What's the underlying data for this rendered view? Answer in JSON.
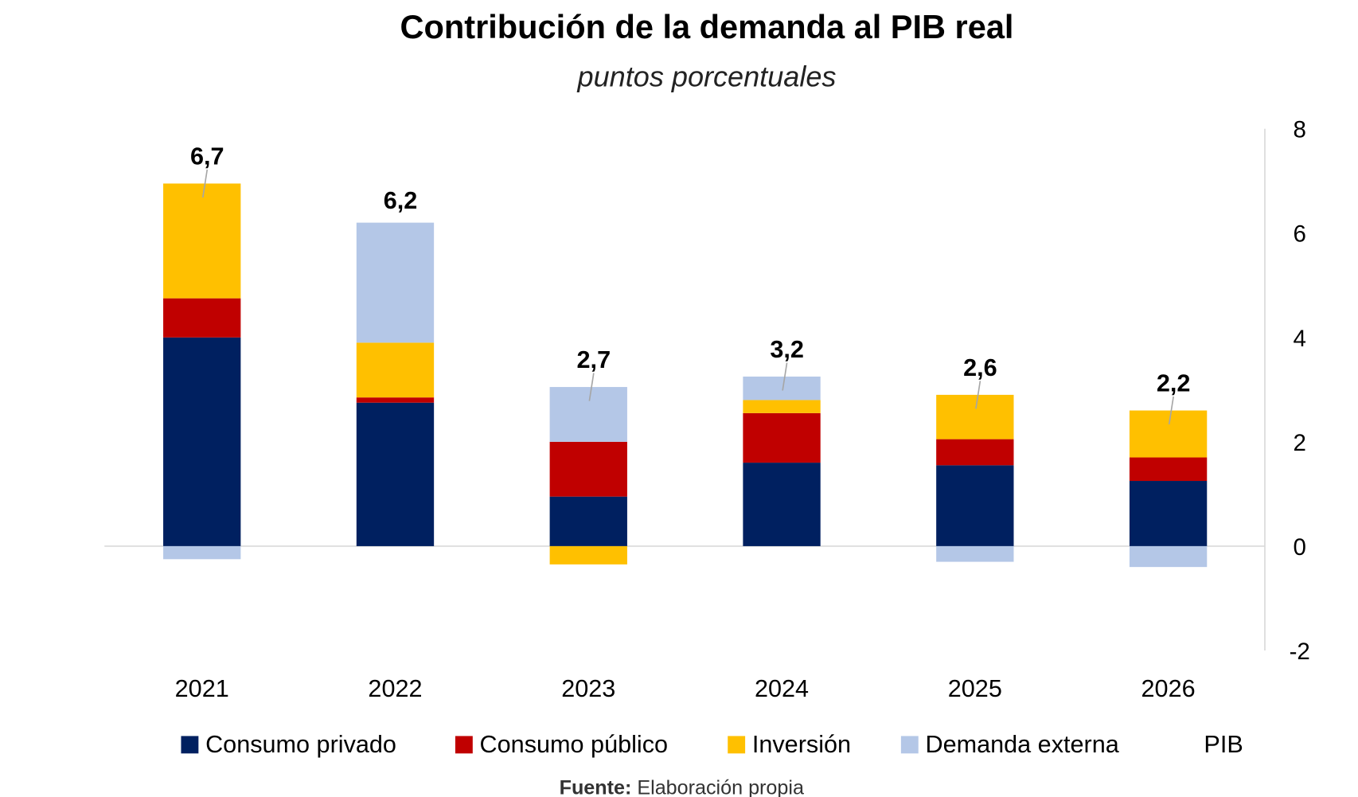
{
  "chart_data": {
    "type": "bar",
    "stacked": true,
    "title": "Contribución de la demanda al PIB real",
    "subtitle": "puntos porcentuales",
    "categories": [
      "2021",
      "2022",
      "2023",
      "2024",
      "2025",
      "2026"
    ],
    "series": [
      {
        "name": "Consumo privado",
        "color": "#002060",
        "values": [
          4.0,
          2.75,
          0.95,
          1.6,
          1.55,
          1.25
        ]
      },
      {
        "name": "Consumo público",
        "color": "#C00000",
        "values": [
          0.75,
          0.1,
          1.05,
          0.95,
          0.5,
          0.45
        ]
      },
      {
        "name": "Inversión",
        "color": "#FFC000",
        "values": [
          2.2,
          1.05,
          -0.35,
          0.25,
          0.85,
          0.9
        ]
      },
      {
        "name": "Demanda externa",
        "color": "#B4C7E7",
        "values": [
          -0.25,
          2.3,
          1.05,
          0.45,
          -0.3,
          -0.4
        ]
      }
    ],
    "total": {
      "name": "PIB",
      "values": [
        6.7,
        6.2,
        2.7,
        3.2,
        2.6,
        2.2
      ],
      "labels": [
        "6,7",
        "6,2",
        "2,7",
        "3,2",
        "2,6",
        "2,2"
      ]
    },
    "yaxis": {
      "position": "right",
      "ylim": [
        -2,
        8
      ],
      "ticks": [
        "8",
        "6",
        "4",
        "2",
        "0",
        "-2"
      ],
      "tick_values": [
        8,
        6,
        4,
        2,
        0,
        -2
      ]
    },
    "grid": false,
    "legend": "bottom",
    "source_label": "Fuente:",
    "source_text": " Elaboración propia"
  }
}
